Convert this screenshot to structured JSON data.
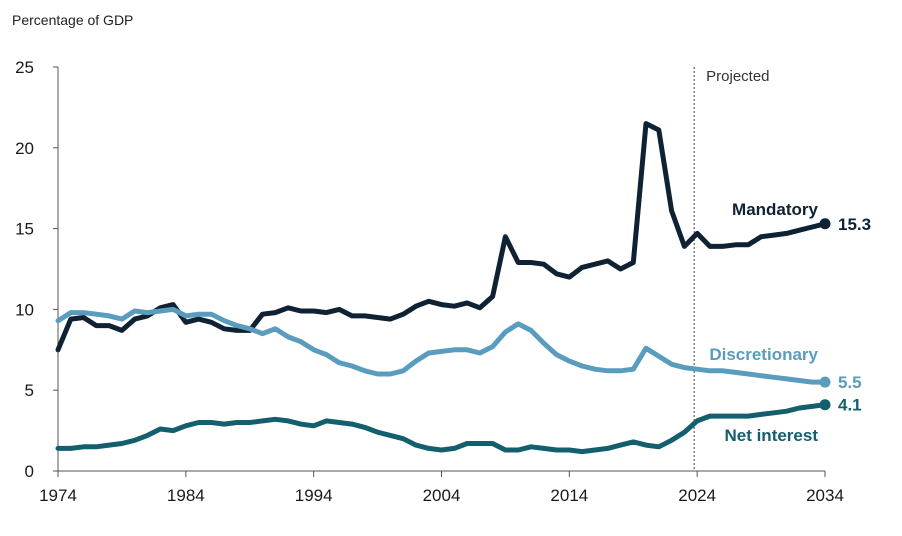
{
  "chart_data": {
    "type": "line",
    "ylabel": "Percentage of GDP",
    "xlim": [
      1974,
      2034
    ],
    "ylim": [
      0,
      25
    ],
    "yticks": [
      0,
      5,
      10,
      15,
      20,
      25
    ],
    "xticks": [
      1974,
      1984,
      1994,
      2004,
      2014,
      2024,
      2034
    ],
    "projection_start": 2024,
    "projection_label": "Projected",
    "grid": false,
    "series": [
      {
        "name": "Mandatory",
        "color": "#0e2233",
        "end_label": "15.3",
        "x": [
          1974,
          1975,
          1976,
          1977,
          1978,
          1979,
          1980,
          1981,
          1982,
          1983,
          1984,
          1985,
          1986,
          1987,
          1988,
          1989,
          1990,
          1991,
          1992,
          1993,
          1994,
          1995,
          1996,
          1997,
          1998,
          1999,
          2000,
          2001,
          2002,
          2003,
          2004,
          2005,
          2006,
          2007,
          2008,
          2009,
          2010,
          2011,
          2012,
          2013,
          2014,
          2015,
          2016,
          2017,
          2018,
          2019,
          2020,
          2021,
          2022,
          2023,
          2024,
          2025,
          2026,
          2027,
          2028,
          2029,
          2030,
          2031,
          2032,
          2033,
          2034
        ],
        "values": [
          7.5,
          9.4,
          9.5,
          9.0,
          9.0,
          8.7,
          9.4,
          9.6,
          10.1,
          10.3,
          9.2,
          9.4,
          9.2,
          8.8,
          8.7,
          8.7,
          9.7,
          9.8,
          10.1,
          9.9,
          9.9,
          9.8,
          10.0,
          9.6,
          9.6,
          9.5,
          9.4,
          9.7,
          10.2,
          10.5,
          10.3,
          10.2,
          10.4,
          10.1,
          10.8,
          14.5,
          12.9,
          12.9,
          12.8,
          12.2,
          12.0,
          12.6,
          12.8,
          13.0,
          12.5,
          12.9,
          21.5,
          21.1,
          16.1,
          13.9,
          14.7,
          13.9,
          13.9,
          14.0,
          14.0,
          14.5,
          14.6,
          14.7,
          14.9,
          15.1,
          15.3
        ]
      },
      {
        "name": "Discretionary",
        "color": "#5a9cbd",
        "end_label": "5.5",
        "x": [
          1974,
          1975,
          1976,
          1977,
          1978,
          1979,
          1980,
          1981,
          1982,
          1983,
          1984,
          1985,
          1986,
          1987,
          1988,
          1989,
          1990,
          1991,
          1992,
          1993,
          1994,
          1995,
          1996,
          1997,
          1998,
          1999,
          2000,
          2001,
          2002,
          2003,
          2004,
          2005,
          2006,
          2007,
          2008,
          2009,
          2010,
          2011,
          2012,
          2013,
          2014,
          2015,
          2016,
          2017,
          2018,
          2019,
          2020,
          2021,
          2022,
          2023,
          2024,
          2025,
          2026,
          2027,
          2028,
          2029,
          2030,
          2031,
          2032,
          2033,
          2034
        ],
        "values": [
          9.3,
          9.8,
          9.8,
          9.7,
          9.6,
          9.4,
          9.9,
          9.8,
          9.9,
          10.0,
          9.6,
          9.7,
          9.7,
          9.3,
          9.0,
          8.8,
          8.5,
          8.8,
          8.3,
          8.0,
          7.5,
          7.2,
          6.7,
          6.5,
          6.2,
          6.0,
          6.0,
          6.2,
          6.8,
          7.3,
          7.4,
          7.5,
          7.5,
          7.3,
          7.7,
          8.6,
          9.1,
          8.7,
          7.9,
          7.2,
          6.8,
          6.5,
          6.3,
          6.2,
          6.2,
          6.3,
          7.6,
          7.1,
          6.6,
          6.4,
          6.3,
          6.2,
          6.2,
          6.1,
          6.0,
          5.9,
          5.8,
          5.7,
          5.6,
          5.5,
          5.5
        ]
      },
      {
        "name": "Net interest",
        "color": "#145f6e",
        "end_label": "4.1",
        "x": [
          1974,
          1975,
          1976,
          1977,
          1978,
          1979,
          1980,
          1981,
          1982,
          1983,
          1984,
          1985,
          1986,
          1987,
          1988,
          1989,
          1990,
          1991,
          1992,
          1993,
          1994,
          1995,
          1996,
          1997,
          1998,
          1999,
          2000,
          2001,
          2002,
          2003,
          2004,
          2005,
          2006,
          2007,
          2008,
          2009,
          2010,
          2011,
          2012,
          2013,
          2014,
          2015,
          2016,
          2017,
          2018,
          2019,
          2020,
          2021,
          2022,
          2023,
          2024,
          2025,
          2026,
          2027,
          2028,
          2029,
          2030,
          2031,
          2032,
          2033,
          2034
        ],
        "values": [
          1.4,
          1.4,
          1.5,
          1.5,
          1.6,
          1.7,
          1.9,
          2.2,
          2.6,
          2.5,
          2.8,
          3.0,
          3.0,
          2.9,
          3.0,
          3.0,
          3.1,
          3.2,
          3.1,
          2.9,
          2.8,
          3.1,
          3.0,
          2.9,
          2.7,
          2.4,
          2.2,
          2.0,
          1.6,
          1.4,
          1.3,
          1.4,
          1.7,
          1.7,
          1.7,
          1.3,
          1.3,
          1.5,
          1.4,
          1.3,
          1.3,
          1.2,
          1.3,
          1.4,
          1.6,
          1.8,
          1.6,
          1.5,
          1.9,
          2.4,
          3.1,
          3.4,
          3.4,
          3.4,
          3.4,
          3.5,
          3.6,
          3.7,
          3.9,
          4.0,
          4.1
        ]
      }
    ]
  }
}
